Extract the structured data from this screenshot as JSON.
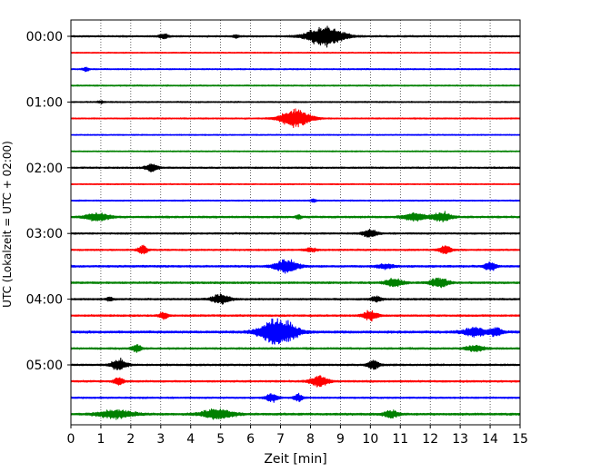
{
  "chart_data": {
    "type": "line",
    "xlabel": "Zeit  [min]",
    "ylabel": "UTC (Lokalzeit = UTC + 02:00)",
    "xlim": [
      0,
      15
    ],
    "x_ticks": [
      "0",
      "1",
      "2",
      "3",
      "4",
      "5",
      "6",
      "7",
      "8",
      "9",
      "10",
      "11",
      "12",
      "13",
      "14",
      "15"
    ],
    "y_tick_labels": [
      {
        "row": 0,
        "label": "00:00"
      },
      {
        "row": 4,
        "label": "01:00"
      },
      {
        "row": 8,
        "label": "02:00"
      },
      {
        "row": 12,
        "label": "03:00"
      },
      {
        "row": 16,
        "label": "04:00"
      },
      {
        "row": 20,
        "label": "05:00"
      }
    ],
    "minutes_per_row": 15,
    "grid": "vertical dotted at each minute",
    "trace_colors": [
      "#000000",
      "#ff0000",
      "#0000ff",
      "#008000"
    ],
    "rows": [
      {
        "noise": 0.1,
        "events": [
          {
            "t": 3.1,
            "amp": 0.35,
            "w": 0.15
          },
          {
            "t": 8.5,
            "amp": 1.3,
            "w": 0.6
          },
          {
            "t": 5.5,
            "amp": 0.2,
            "w": 0.1
          }
        ]
      },
      {
        "noise": 0.07,
        "events": []
      },
      {
        "noise": 0.08,
        "events": [
          {
            "t": 0.5,
            "amp": 0.25,
            "w": 0.1
          }
        ]
      },
      {
        "noise": 0.08,
        "events": []
      },
      {
        "noise": 0.08,
        "events": [
          {
            "t": 1.0,
            "amp": 0.15,
            "w": 0.1
          }
        ]
      },
      {
        "noise": 0.08,
        "events": [
          {
            "t": 7.5,
            "amp": 1.2,
            "w": 0.5
          }
        ]
      },
      {
        "noise": 0.07,
        "events": []
      },
      {
        "noise": 0.07,
        "events": []
      },
      {
        "noise": 0.1,
        "events": [
          {
            "t": 2.7,
            "amp": 0.55,
            "w": 0.2
          }
        ]
      },
      {
        "noise": 0.07,
        "events": []
      },
      {
        "noise": 0.08,
        "events": [
          {
            "t": 8.1,
            "amp": 0.2,
            "w": 0.1
          }
        ]
      },
      {
        "noise": 0.12,
        "events": [
          {
            "t": 0.9,
            "amp": 0.5,
            "w": 0.4
          },
          {
            "t": 7.6,
            "amp": 0.25,
            "w": 0.1
          },
          {
            "t": 11.5,
            "amp": 0.5,
            "w": 0.4
          },
          {
            "t": 12.4,
            "amp": 0.6,
            "w": 0.3
          }
        ]
      },
      {
        "noise": 0.1,
        "events": [
          {
            "t": 10.0,
            "amp": 0.45,
            "w": 0.25
          }
        ]
      },
      {
        "noise": 0.1,
        "events": [
          {
            "t": 2.4,
            "amp": 0.6,
            "w": 0.15
          },
          {
            "t": 8.0,
            "amp": 0.25,
            "w": 0.2
          },
          {
            "t": 12.5,
            "amp": 0.6,
            "w": 0.2
          }
        ]
      },
      {
        "noise": 0.12,
        "events": [
          {
            "t": 7.2,
            "amp": 0.8,
            "w": 0.4
          },
          {
            "t": 10.5,
            "amp": 0.25,
            "w": 0.3
          },
          {
            "t": 14.0,
            "amp": 0.55,
            "w": 0.2
          }
        ]
      },
      {
        "noise": 0.12,
        "events": [
          {
            "t": 10.8,
            "amp": 0.55,
            "w": 0.3
          },
          {
            "t": 12.3,
            "amp": 0.6,
            "w": 0.3
          }
        ]
      },
      {
        "noise": 0.11,
        "events": [
          {
            "t": 1.3,
            "amp": 0.25,
            "w": 0.1
          },
          {
            "t": 5.0,
            "amp": 0.6,
            "w": 0.3
          },
          {
            "t": 10.2,
            "amp": 0.3,
            "w": 0.2
          }
        ]
      },
      {
        "noise": 0.11,
        "events": [
          {
            "t": 3.1,
            "amp": 0.45,
            "w": 0.15
          },
          {
            "t": 10.0,
            "amp": 0.6,
            "w": 0.25
          }
        ]
      },
      {
        "noise": 0.14,
        "events": [
          {
            "t": 6.9,
            "amp": 1.7,
            "w": 0.6
          },
          {
            "t": 13.5,
            "amp": 0.6,
            "w": 0.4
          },
          {
            "t": 14.2,
            "amp": 0.55,
            "w": 0.2
          }
        ]
      },
      {
        "noise": 0.11,
        "events": [
          {
            "t": 2.2,
            "amp": 0.55,
            "w": 0.15
          },
          {
            "t": 13.5,
            "amp": 0.4,
            "w": 0.3
          }
        ]
      },
      {
        "noise": 0.11,
        "events": [
          {
            "t": 1.6,
            "amp": 0.7,
            "w": 0.25
          },
          {
            "t": 10.1,
            "amp": 0.6,
            "w": 0.2
          }
        ]
      },
      {
        "noise": 0.11,
        "events": [
          {
            "t": 1.6,
            "amp": 0.55,
            "w": 0.15
          },
          {
            "t": 8.3,
            "amp": 0.75,
            "w": 0.3
          }
        ]
      },
      {
        "noise": 0.1,
        "events": [
          {
            "t": 6.7,
            "amp": 0.55,
            "w": 0.2
          },
          {
            "t": 7.6,
            "amp": 0.5,
            "w": 0.15
          }
        ]
      },
      {
        "noise": 0.13,
        "events": [
          {
            "t": 1.5,
            "amp": 0.5,
            "w": 0.6
          },
          {
            "t": 4.9,
            "amp": 0.7,
            "w": 0.5
          },
          {
            "t": 10.7,
            "amp": 0.45,
            "w": 0.25
          }
        ]
      }
    ]
  }
}
